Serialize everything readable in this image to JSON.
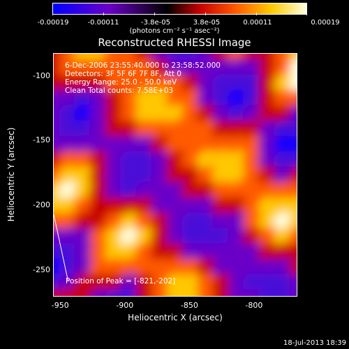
{
  "chart_data": {
    "type": "heatmap",
    "title": "Reconstructed RHESSI Image",
    "colorbar": {
      "tick_labels": [
        "-0.00019",
        "-0.00011",
        "-3.8e-05",
        "3.8e-05",
        "0.00011",
        "0.00019"
      ],
      "tick_values": [
        -0.00019,
        -0.00011,
        -3.8e-05,
        3.8e-05,
        0.00011,
        0.00019
      ],
      "range": [
        -0.00019,
        0.00019
      ],
      "units": "(photons cm⁻² s⁻¹ asec⁻²)",
      "colormap": [
        "#0000ff",
        "#6a00c8",
        "#000000",
        "#c80000",
        "#ff5a00",
        "#ffc800",
        "#ffffe0"
      ]
    },
    "xlabel": "Heliocentric X (arcsec)",
    "ylabel": "Heliocentric Y (arcsec)",
    "xlim": [
      -955,
      -767
    ],
    "ylim": [
      -270,
      -83
    ],
    "x_ticks": [
      -950,
      -900,
      -850,
      -800
    ],
    "x_tick_labels": [
      "-950",
      "-900",
      "-850",
      "-800"
    ],
    "y_ticks": [
      -100,
      -150,
      -200,
      -250
    ],
    "y_tick_labels": [
      "-100",
      "-150",
      "-200",
      "-250"
    ],
    "annotations": {
      "time_range": "6-Dec-2006 23:55:40.000 to 23:58:52.000",
      "detectors": "Detectors: 3F 5F 6F 7F 8F, Att 0",
      "energy": "Energy Range: 25.0 - 50.0 keV",
      "method": "Clean    Total counts: 7.58E+03",
      "peak": "Position of Peak = [-821,-202]"
    },
    "peak_position": [
      -821,
      -202
    ],
    "line_start": [
      -955,
      -207
    ],
    "grid": false,
    "legend": "none"
  },
  "timestamp": "18-Jul-2013 18:39"
}
